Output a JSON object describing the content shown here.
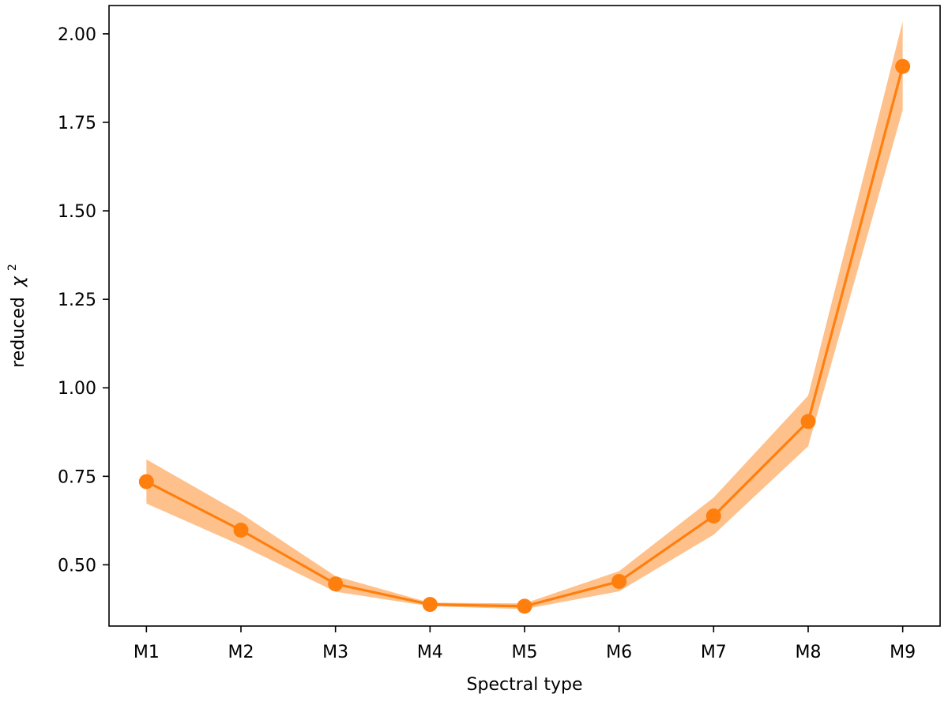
{
  "chart_data": {
    "type": "line",
    "title": "",
    "xlabel": "Spectral type",
    "ylabel": "reduced",
    "ylabel_symbol": "χ",
    "ylabel_superscript": "2",
    "categories": [
      "M1",
      "M2",
      "M3",
      "M4",
      "M5",
      "M6",
      "M7",
      "M8",
      "M9"
    ],
    "series": [
      {
        "values": [
          0.735,
          0.598,
          0.446,
          0.388,
          0.383,
          0.453,
          0.638,
          0.905,
          1.908
        ],
        "band_lower": [
          0.673,
          0.555,
          0.424,
          0.383,
          0.375,
          0.425,
          0.585,
          0.835,
          1.785
        ],
        "band_upper": [
          0.798,
          0.645,
          0.468,
          0.393,
          0.391,
          0.482,
          0.69,
          0.978,
          2.035
        ],
        "color": "#ff7f0e",
        "band_color": "#ffc18c"
      }
    ],
    "ylim": [
      0.327,
      2.08
    ],
    "yticks": [
      0.5,
      0.75,
      1.0,
      1.25,
      1.5,
      1.75,
      2.0
    ],
    "ytick_labels": [
      "0.50",
      "0.75",
      "1.00",
      "1.25",
      "1.50",
      "1.75",
      "2.00"
    ],
    "grid": false,
    "legend": "none"
  }
}
